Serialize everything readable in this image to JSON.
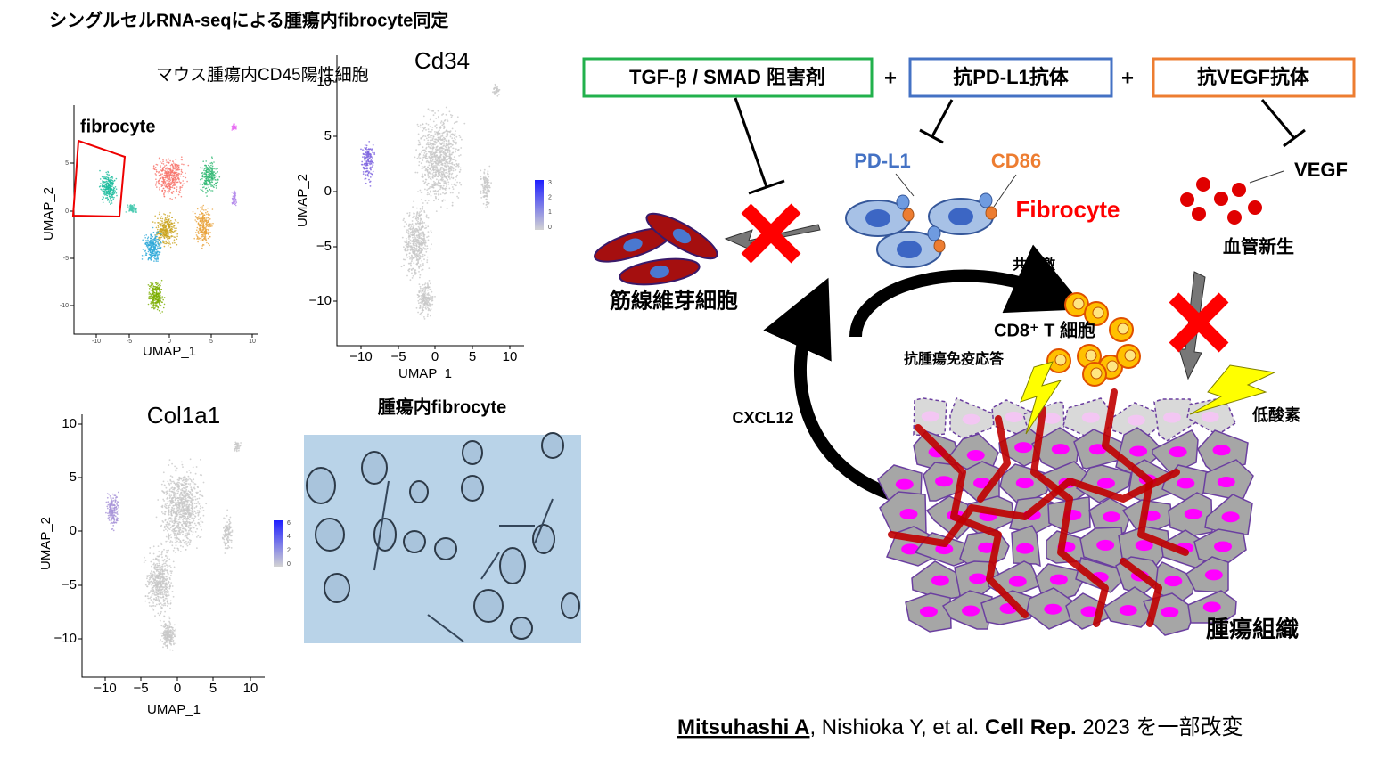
{
  "header": {
    "title": "シングルセルRNA-seqによる腫瘍内fibrocyte同定"
  },
  "umap_panels": [
    {
      "title": "マウス腫瘍内CD45陽性細胞",
      "annotation": "fibrocyte",
      "x_label": "UMAP_1",
      "y_label": "UMAP_2",
      "x_ticks": [
        "-10",
        "-5",
        "0",
        "5",
        "10"
      ],
      "y_ticks": [
        "5",
        "0",
        "-5",
        "-10"
      ]
    },
    {
      "title": "Cd34",
      "x_label": "UMAP_1",
      "y_label": "UMAP_2",
      "x_ticks": [
        "−10",
        "−5",
        "0",
        "5",
        "10"
      ],
      "y_ticks": [
        "10",
        "5",
        "0",
        "−5",
        "−10"
      ],
      "colorbar_ticks": [
        "3",
        "2",
        "1",
        "0"
      ]
    },
    {
      "title": "Col1a1",
      "x_label": "UMAP_1",
      "y_label": "UMAP_2",
      "x_ticks": [
        "−10",
        "−5",
        "0",
        "5",
        "10"
      ],
      "y_ticks": [
        "10",
        "5",
        "0",
        "−5",
        "−10"
      ],
      "colorbar_ticks": [
        "6",
        "4",
        "2",
        "0"
      ]
    }
  ],
  "micrograph": {
    "title": "腫瘍内fibrocyte"
  },
  "diagram": {
    "drugs": [
      "TGF-β / SMAD 阻害剤",
      "抗PD-L1抗体",
      "抗VEGF抗体"
    ],
    "operators": [
      "+",
      "+"
    ],
    "pd_l1": "PD-L1",
    "cd86": "CD86",
    "fibrocyte": "Fibrocyte",
    "vegf": "VEGF",
    "myofibroblast": "筋線維芽細胞",
    "angiogenesis": "血管新生",
    "costimulation": "共刺激",
    "cd8_t_cell": "CD8⁺ T 細胞",
    "antitumor_immunity": "抗腫瘍免疫応答",
    "cxcl12": "CXCL12",
    "hypoxia": "低酸素",
    "tumor_tissue": "腫瘍組織"
  },
  "citation": {
    "author": "Mitsuhashi A",
    "rest": ", Nishioka Y, et al. ",
    "journal": "Cell Rep.",
    "year_note": " 2023 を一部改変"
  }
}
